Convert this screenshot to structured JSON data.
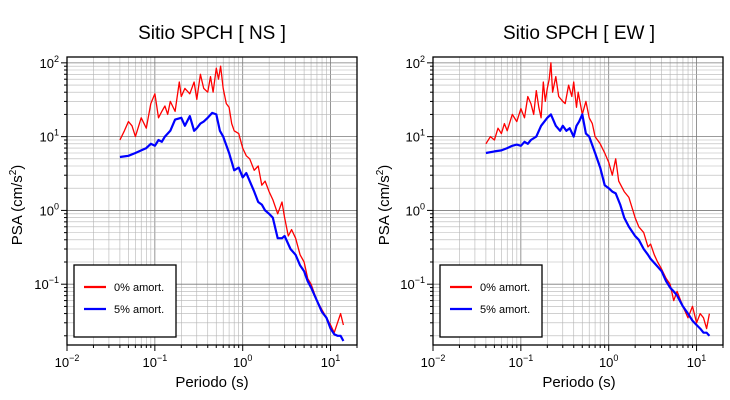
{
  "chart_data": [
    {
      "type": "line",
      "title": "Sitio SPCH [ NS ]",
      "xlabel": "Periodo (s)",
      "ylabel_base": "PSA (cm/s",
      "ylabel_sup": "2",
      "ylabel_end": ")",
      "x_scale": "log",
      "y_scale": "log",
      "xlim": [
        0.01,
        20
      ],
      "ylim": [
        0.015,
        120
      ],
      "x_ticks": [
        {
          "value": 0.01,
          "base": "10",
          "exp": "−2"
        },
        {
          "value": 0.1,
          "base": "10",
          "exp": "−1"
        },
        {
          "value": 1,
          "base": "10",
          "exp": "0"
        },
        {
          "value": 10,
          "base": "10",
          "exp": "1"
        }
      ],
      "y_ticks": [
        {
          "value": 0.1,
          "base": "10",
          "exp": "−1"
        },
        {
          "value": 1,
          "base": "10",
          "exp": "0"
        },
        {
          "value": 10,
          "base": "10",
          "exp": "1"
        },
        {
          "value": 100,
          "base": "10",
          "exp": "2"
        }
      ],
      "grid": true,
      "legend_position": "bottom-left",
      "series": [
        {
          "name": "0% amort.",
          "color": "#ff0000",
          "x": [
            0.04,
            0.045,
            0.05,
            0.055,
            0.06,
            0.07,
            0.08,
            0.09,
            0.1,
            0.11,
            0.12,
            0.13,
            0.14,
            0.15,
            0.17,
            0.19,
            0.2,
            0.22,
            0.25,
            0.28,
            0.3,
            0.33,
            0.36,
            0.4,
            0.43,
            0.46,
            0.5,
            0.53,
            0.56,
            0.6,
            0.65,
            0.7,
            0.75,
            0.8,
            0.9,
            1.0,
            1.1,
            1.2,
            1.35,
            1.5,
            1.65,
            1.8,
            2.0,
            2.2,
            2.5,
            2.8,
            3.0,
            3.3,
            3.6,
            4.0,
            4.5,
            5.0,
            5.5,
            6.0,
            7.0,
            8.0,
            9.0,
            10.0,
            11.0,
            12.0,
            13.0,
            14.0
          ],
          "y": [
            9,
            12,
            16,
            14,
            10,
            18,
            13,
            28,
            38,
            18,
            22,
            26,
            20,
            30,
            22,
            55,
            35,
            45,
            38,
            55,
            32,
            70,
            45,
            40,
            65,
            40,
            85,
            60,
            90,
            45,
            28,
            25,
            15,
            12,
            11,
            7,
            5.5,
            5,
            3.5,
            4,
            2.2,
            2.5,
            1.8,
            1.4,
            0.9,
            1.3,
            0.8,
            0.45,
            0.55,
            0.42,
            0.25,
            0.2,
            0.12,
            0.1,
            0.06,
            0.045,
            0.035,
            0.028,
            0.022,
            0.03,
            0.04,
            0.028
          ]
        },
        {
          "name": "5% amort.",
          "color": "#0000ff",
          "x": [
            0.04,
            0.05,
            0.06,
            0.07,
            0.08,
            0.09,
            0.1,
            0.11,
            0.12,
            0.13,
            0.15,
            0.17,
            0.2,
            0.22,
            0.25,
            0.28,
            0.3,
            0.33,
            0.36,
            0.4,
            0.45,
            0.5,
            0.55,
            0.6,
            0.7,
            0.8,
            0.9,
            1.0,
            1.1,
            1.2,
            1.35,
            1.5,
            1.65,
            1.8,
            2.0,
            2.2,
            2.5,
            2.8,
            3.0,
            3.5,
            4.0,
            4.5,
            5.0,
            5.5,
            6.0,
            7.0,
            8.0,
            9.0,
            10.0,
            11.0,
            12.0,
            13.0,
            14.0
          ],
          "y": [
            5.3,
            5.5,
            6,
            6.5,
            7,
            8,
            7.5,
            9,
            8.5,
            10,
            12,
            17,
            18,
            14,
            19,
            12,
            13,
            15,
            16,
            18,
            21,
            20,
            12,
            10,
            6,
            3.5,
            3.8,
            2.8,
            3.2,
            2.5,
            1.8,
            1.3,
            1.2,
            1.0,
            0.9,
            0.8,
            0.42,
            0.42,
            0.45,
            0.3,
            0.25,
            0.18,
            0.15,
            0.11,
            0.09,
            0.06,
            0.042,
            0.035,
            0.025,
            0.021,
            0.02,
            0.02,
            0.017
          ]
        }
      ]
    },
    {
      "type": "line",
      "title": "Sitio SPCH [ EW ]",
      "xlabel": "Periodo (s)",
      "ylabel_base": "PSA (cm/s",
      "ylabel_sup": "2",
      "ylabel_end": ")",
      "x_scale": "log",
      "y_scale": "log",
      "xlim": [
        0.01,
        20
      ],
      "ylim": [
        0.015,
        120
      ],
      "x_ticks": [
        {
          "value": 0.01,
          "base": "10",
          "exp": "−2"
        },
        {
          "value": 0.1,
          "base": "10",
          "exp": "−1"
        },
        {
          "value": 1,
          "base": "10",
          "exp": "0"
        },
        {
          "value": 10,
          "base": "10",
          "exp": "1"
        }
      ],
      "y_ticks": [
        {
          "value": 0.1,
          "base": "10",
          "exp": "−1"
        },
        {
          "value": 1,
          "base": "10",
          "exp": "0"
        },
        {
          "value": 10,
          "base": "10",
          "exp": "1"
        },
        {
          "value": 100,
          "base": "10",
          "exp": "2"
        }
      ],
      "grid": true,
      "legend_position": "bottom-left",
      "series": [
        {
          "name": "0% amort.",
          "color": "#ff0000",
          "x": [
            0.04,
            0.045,
            0.05,
            0.055,
            0.06,
            0.065,
            0.07,
            0.08,
            0.09,
            0.1,
            0.11,
            0.12,
            0.13,
            0.14,
            0.15,
            0.16,
            0.17,
            0.18,
            0.19,
            0.2,
            0.21,
            0.22,
            0.23,
            0.25,
            0.27,
            0.3,
            0.32,
            0.35,
            0.38,
            0.4,
            0.43,
            0.45,
            0.5,
            0.55,
            0.6,
            0.65,
            0.7,
            0.8,
            0.9,
            1.0,
            1.1,
            1.2,
            1.3,
            1.5,
            1.7,
            2.0,
            2.2,
            2.5,
            2.8,
            3.0,
            3.3,
            3.6,
            4.0,
            4.5,
            5.0,
            5.5,
            6.0,
            7.0,
            8.0,
            9.0,
            10.0,
            11.0,
            12.0,
            13.0,
            14.0
          ],
          "y": [
            8,
            10,
            9,
            13,
            11,
            15,
            12,
            20,
            16,
            24,
            18,
            35,
            28,
            20,
            42,
            25,
            18,
            55,
            30,
            45,
            60,
            100,
            40,
            65,
            35,
            30,
            28,
            50,
            35,
            55,
            25,
            40,
            20,
            30,
            18,
            15,
            10,
            8,
            6,
            4.5,
            3,
            5,
            2.5,
            1.8,
            1.5,
            0.8,
            0.6,
            0.5,
            0.32,
            0.35,
            0.25,
            0.2,
            0.16,
            0.12,
            0.1,
            0.06,
            0.08,
            0.05,
            0.035,
            0.05,
            0.03,
            0.04,
            0.035,
            0.025,
            0.04
          ]
        },
        {
          "name": "5% amort.",
          "color": "#0000ff",
          "x": [
            0.04,
            0.05,
            0.06,
            0.07,
            0.08,
            0.09,
            0.1,
            0.11,
            0.12,
            0.13,
            0.15,
            0.17,
            0.2,
            0.22,
            0.25,
            0.28,
            0.3,
            0.33,
            0.36,
            0.4,
            0.43,
            0.46,
            0.5,
            0.55,
            0.6,
            0.7,
            0.8,
            0.9,
            1.0,
            1.1,
            1.2,
            1.35,
            1.5,
            1.7,
            2.0,
            2.2,
            2.5,
            2.8,
            3.0,
            3.5,
            4.0,
            4.5,
            5.0,
            5.5,
            6.0,
            7.0,
            8.0,
            9.0,
            10.0,
            11.0,
            12.0,
            13.0,
            14.0
          ],
          "y": [
            6,
            6.3,
            6.5,
            7,
            7.5,
            7.8,
            7.5,
            8.5,
            8,
            9,
            10,
            14,
            18,
            20,
            14,
            12,
            14,
            12,
            13,
            10,
            14,
            16,
            20,
            11,
            10,
            6,
            3.8,
            2.2,
            2.0,
            1.8,
            1.7,
            1.2,
            0.8,
            0.6,
            0.45,
            0.4,
            0.3,
            0.25,
            0.22,
            0.18,
            0.15,
            0.11,
            0.09,
            0.08,
            0.07,
            0.05,
            0.04,
            0.032,
            0.028,
            0.025,
            0.022,
            0.022,
            0.02
          ]
        }
      ]
    }
  ]
}
